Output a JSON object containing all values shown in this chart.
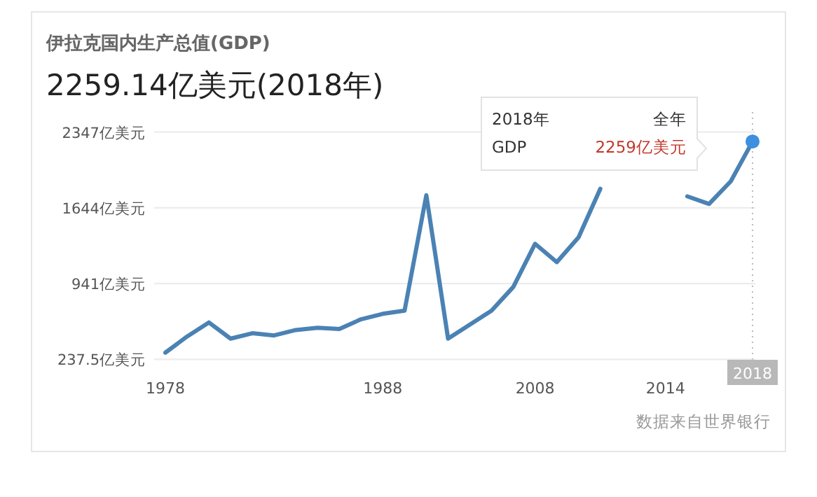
{
  "chart_data": {
    "type": "line",
    "title": "伊拉克国内生产总值(GDP)",
    "subtitle": "2259.14亿美元(2018年)",
    "categories": [
      "1978",
      null,
      null,
      null,
      null,
      null,
      null,
      null,
      null,
      null,
      "1988",
      null,
      null,
      null,
      null,
      null,
      null,
      "2008",
      null,
      null,
      null,
      null,
      null,
      "2014",
      null,
      null,
      null,
      "2018"
    ],
    "series": [
      {
        "color": "#4b82b4",
        "values": [
          300,
          450,
          580,
          430,
          480,
          460,
          510,
          530,
          520,
          610,
          660,
          690,
          1760,
          430,
          560,
          690,
          910,
          1310,
          1140,
          1370,
          1820,
          null,
          null,
          null,
          1750,
          1680,
          1890,
          2259
        ]
      },
      {
        "type": "scatter",
        "marker": "circle",
        "color": "#3d8fe0",
        "values": [
          null,
          null,
          null,
          null,
          null,
          null,
          null,
          null,
          null,
          null,
          null,
          null,
          null,
          null,
          null,
          null,
          null,
          null,
          null,
          null,
          null,
          null,
          null,
          null,
          null,
          null,
          null,
          2259
        ]
      }
    ],
    "ylim": [
      237.5,
      2347
    ],
    "yticks": [
      {
        "value": 237.5,
        "label": "237.5亿美元"
      },
      {
        "value": 941,
        "label": "941亿美元"
      },
      {
        "value": 1644,
        "label": "1644亿美元"
      },
      {
        "value": 2347,
        "label": "2347亿美元"
      }
    ],
    "grid": "y",
    "marker": "none",
    "line_style": "solid",
    "ref_lines": [
      {
        "axis": "x",
        "value": "2018",
        "line_style": "dotted",
        "color": "#bbbbbb"
      }
    ],
    "annotations": [
      "2018年",
      "全年",
      "GDP",
      "2259亿美元",
      "数据来自世界银行"
    ]
  }
}
